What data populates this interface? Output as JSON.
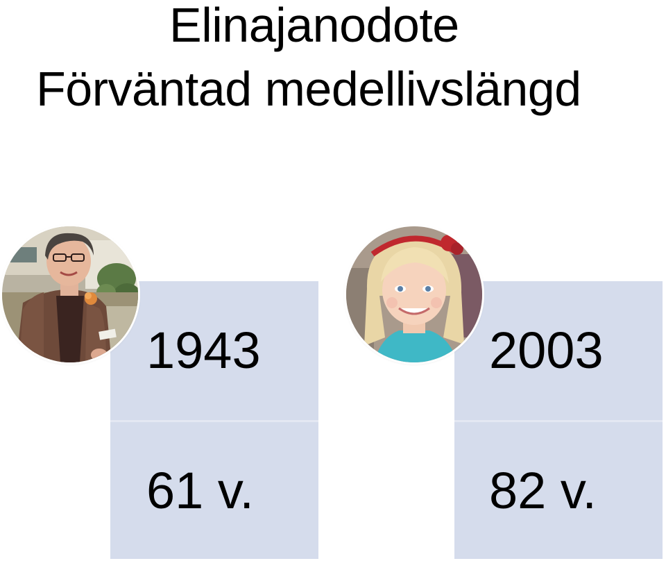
{
  "slide": {
    "title_line_1": "Elinajanodote",
    "title_line_2": "Förväntad medellivslängd"
  },
  "comparison": [
    {
      "photo": "elderly-woman-photo",
      "year": "1943",
      "life_expectancy": "61 v."
    },
    {
      "photo": "young-girl-photo",
      "year": "2003",
      "life_expectancy": "82 v."
    }
  ],
  "colors": {
    "panel_fill": "#d5dcec",
    "panel_divider": "#e4e8f3",
    "text": "#000000",
    "background": "#ffffff"
  }
}
